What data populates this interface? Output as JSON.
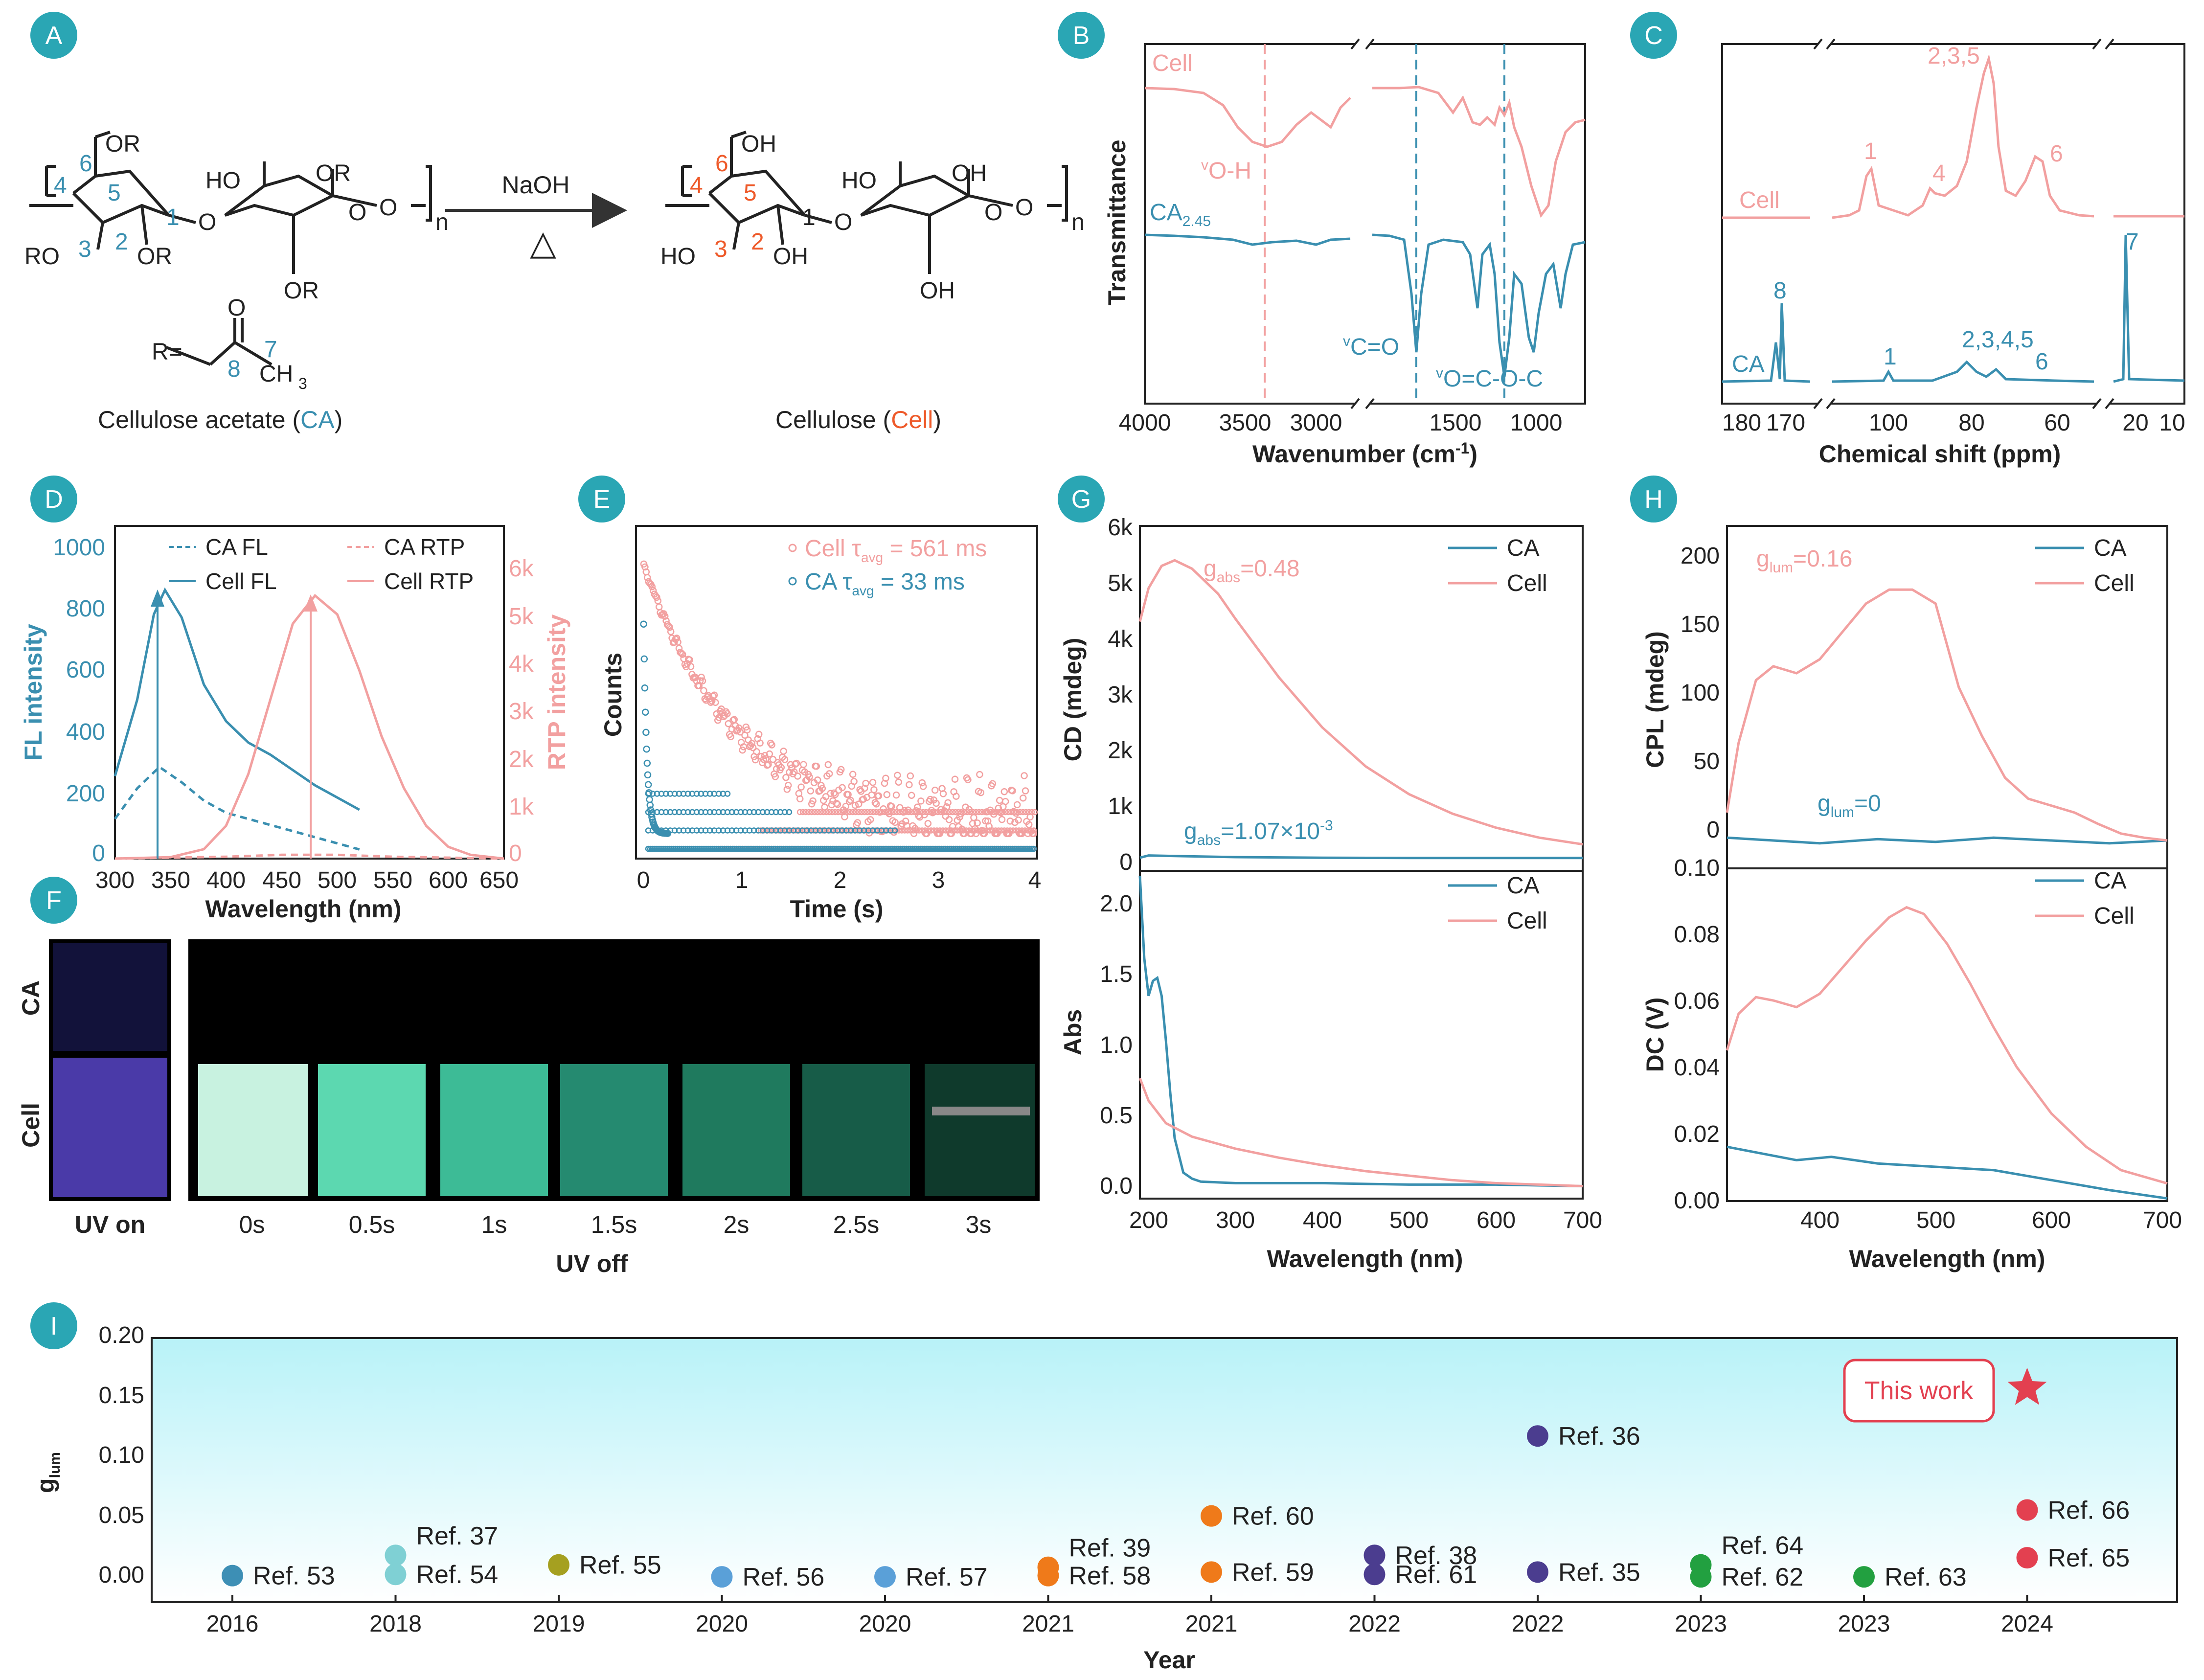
{
  "colors": {
    "teal": "#3a8fb0",
    "pink": "#f2a0a0",
    "orange": "#ee5a2a",
    "red": "#e34050",
    "black": "#222222",
    "badge": "#2aa6b4"
  },
  "panels": {
    "A": {
      "badge": "A",
      "cell_label_prefix": "Cellulose acetate (",
      "ca_abbrev": "CA",
      "cell_label_suffix": ")",
      "cell2_label_prefix": "Cellulose  (",
      "cell_abbrev": "Cell",
      "cell2_label_suffix": ")",
      "reagent": "NaOH",
      "heat": "△",
      "r_label": "R=",
      "atoms": {
        "OR": "OR",
        "RO": "RO",
        "HO": "HO",
        "OH": "OH",
        "O": "O",
        "n": "n",
        "CH3": "CH",
        "sub3": "3"
      },
      "ring_numbers_left": [
        "6",
        "4",
        "5",
        "1",
        "3",
        "2",
        "7",
        "8"
      ],
      "ring_numbers_right": [
        "6",
        "4",
        "5",
        "1",
        "3",
        "2"
      ]
    },
    "B": {
      "badge": "B",
      "series_top": "Cell",
      "series_bottom": "CA",
      "series_bottom_sub": "2.45",
      "ylabel": "Transmittance",
      "xlabel": "Wavenumber (cm",
      "xlabel_sup": "-1",
      "xlabel_end": ")",
      "ann_oh_v": "v",
      "ann_oh": "O-H",
      "ann_co_v": "v",
      "ann_co": "C=O",
      "ann_oco_v": "v",
      "ann_oco": "O=C-O-C",
      "xticks_left": [
        "4000",
        "3500",
        "3000"
      ],
      "xticks_right": [
        "1500",
        "1000"
      ]
    },
    "C": {
      "badge": "C",
      "xlabel": "Chemical shift (ppm)",
      "series_top": "Cell",
      "series_bottom": "CA",
      "peaks_top": [
        "1",
        "4",
        "2,3,5",
        "6"
      ],
      "peaks_bottom": [
        "8",
        "1",
        "2,3,4,5",
        "6",
        "7"
      ],
      "xticks": [
        "180",
        "170",
        "100",
        "80",
        "60",
        "20",
        "10"
      ]
    },
    "D": {
      "badge": "D",
      "ylabel_left": "FL intensity",
      "ylabel_right": "RTP intensity",
      "xlabel": "Wavelength (nm)",
      "legend": [
        "CA FL",
        "Cell FL",
        "CA RTP",
        "Cell RTP"
      ],
      "yticks_left": [
        "0",
        "200",
        "400",
        "600",
        "800",
        "1000"
      ],
      "yticks_right": [
        "0",
        "1k",
        "2k",
        "3k",
        "4k",
        "5k",
        "6k"
      ],
      "xticks": [
        "300",
        "350",
        "400",
        "450",
        "500",
        "550",
        "600",
        "650"
      ]
    },
    "E": {
      "badge": "E",
      "ylabel": "Counts",
      "xlabel": "Time (s)",
      "legend_cell": "Cell τ",
      "legend_cell_sub": "avg",
      "legend_cell_val": " = 561 ms",
      "legend_ca": "CA   τ",
      "legend_ca_sub": "avg",
      "legend_ca_val": " = 33 ms",
      "xticks": [
        "0",
        "1",
        "2",
        "3",
        "4"
      ]
    },
    "F": {
      "badge": "F",
      "row_labels": [
        "CA",
        "Cell"
      ],
      "col_labels": [
        "UV on",
        "0s",
        "0.5s",
        "1s",
        "1.5s",
        "2s",
        "2.5s",
        "3s"
      ],
      "group_label": "UV off"
    },
    "G": {
      "badge": "G",
      "top_ylabel": "CD (mdeg)",
      "bottom_ylabel": "Abs",
      "xlabel": "Wavelength (nm)",
      "legend": [
        "CA",
        "Cell"
      ],
      "ann_cell": "g",
      "ann_cell_sub": "abs",
      "ann_cell_val": "=0.48",
      "ann_ca": "g",
      "ann_ca_sub": "abs",
      "ann_ca_val": "=1.07×10",
      "ann_ca_sup": "-3",
      "top_yticks": [
        "0",
        "1k",
        "2k",
        "3k",
        "4k",
        "5k",
        "6k"
      ],
      "bottom_yticks": [
        "0.0",
        "0.5",
        "1.0",
        "1.5",
        "2.0"
      ],
      "xticks": [
        "200",
        "300",
        "400",
        "500",
        "600",
        "700"
      ]
    },
    "H": {
      "badge": "H",
      "top_ylabel": "CPL (mdeg)",
      "bottom_ylabel": "DC (V)",
      "xlabel": "Wavelength (nm)",
      "legend": [
        "CA",
        "Cell"
      ],
      "ann_cell": "g",
      "ann_cell_sub": "lum",
      "ann_cell_val": "=0.16",
      "ann_ca": "g",
      "ann_ca_sub": "lum",
      "ann_ca_val": "=0",
      "top_yticks": [
        "0",
        "50",
        "100",
        "150",
        "200"
      ],
      "bottom_yticks": [
        "0.00",
        "0.02",
        "0.04",
        "0.06",
        "0.08",
        "0.10"
      ],
      "xticks": [
        "400",
        "500",
        "600",
        "700"
      ]
    },
    "I": {
      "badge": "I",
      "ylabel": "g",
      "ylabel_sub": "lum",
      "xlabel": "Year",
      "this_work": "This work",
      "yticks": [
        "0.00",
        "0.05",
        "0.10",
        "0.15",
        "0.20"
      ],
      "xticks": [
        "2016",
        "2018",
        "2019",
        "2020",
        "2020",
        "2021",
        "2021",
        "2022",
        "2022",
        "2023",
        "2023",
        "2024"
      ]
    }
  },
  "chart_data": [
    {
      "id": "D",
      "type": "line",
      "xlabel": "Wavelength (nm)",
      "ylabel": "FL intensity",
      "y2label": "RTP intensity",
      "xlim": [
        300,
        650
      ],
      "ylim": [
        0,
        1000
      ],
      "y2lim": [
        0,
        6500
      ],
      "series": [
        {
          "name": "CA FL",
          "axis": "left",
          "style": "dashed",
          "color": "#3a8fb0",
          "x": [
            300,
            320,
            340,
            360,
            380,
            400,
            420,
            440,
            460,
            480,
            500,
            520
          ],
          "y": [
            130,
            230,
            300,
            250,
            190,
            150,
            130,
            110,
            90,
            70,
            50,
            30
          ]
        },
        {
          "name": "Cell FL",
          "axis": "left",
          "style": "solid",
          "color": "#3a8fb0",
          "x": [
            300,
            320,
            335,
            345,
            360,
            380,
            400,
            420,
            440,
            460,
            480,
            500,
            520
          ],
          "y": [
            270,
            520,
            800,
            880,
            790,
            570,
            450,
            380,
            340,
            290,
            240,
            200,
            160
          ]
        },
        {
          "name": "CA RTP",
          "axis": "right",
          "style": "dashed",
          "color": "#f2a0a0",
          "x": [
            300,
            350,
            400,
            450,
            500,
            550,
            600,
            650
          ],
          "y": [
            0,
            20,
            40,
            80,
            80,
            40,
            20,
            0
          ]
        },
        {
          "name": "Cell RTP",
          "axis": "right",
          "style": "solid",
          "color": "#f2a0a0",
          "x": [
            300,
            350,
            380,
            400,
            420,
            440,
            460,
            480,
            500,
            520,
            540,
            560,
            580,
            600,
            620,
            650
          ],
          "y": [
            0,
            30,
            200,
            700,
            1800,
            3400,
            5000,
            5600,
            5200,
            4000,
            2600,
            1500,
            700,
            250,
            80,
            0
          ]
        }
      ]
    },
    {
      "id": "E",
      "type": "scatter",
      "xlabel": "Time (s)",
      "ylabel": "Counts",
      "xlim": [
        0,
        4
      ],
      "series": [
        {
          "name": "Cell",
          "color": "#f2a0a0",
          "decay_tau_ms": 561
        },
        {
          "name": "CA",
          "color": "#3a8fb0",
          "decay_tau_ms": 33
        }
      ]
    },
    {
      "id": "G-top",
      "type": "line",
      "xlabel": "",
      "ylabel": "CD (mdeg)",
      "xlim": [
        190,
        700
      ],
      "ylim": [
        0,
        6000
      ],
      "series": [
        {
          "name": "CA",
          "color": "#3a8fb0",
          "x": [
            190,
            200,
            230,
            300,
            400,
            500,
            600,
            700
          ],
          "y": [
            60,
            100,
            90,
            70,
            60,
            55,
            55,
            55
          ]
        },
        {
          "name": "Cell",
          "color": "#f2a0a0",
          "x": [
            190,
            200,
            215,
            230,
            250,
            280,
            300,
            350,
            400,
            450,
            500,
            550,
            600,
            650,
            700
          ],
          "y": [
            4300,
            4900,
            5300,
            5400,
            5250,
            4800,
            4350,
            3300,
            2400,
            1700,
            1200,
            850,
            600,
            420,
            300
          ]
        }
      ]
    },
    {
      "id": "G-bottom",
      "type": "line",
      "xlabel": "Wavelength (nm)",
      "ylabel": "Abs",
      "xlim": [
        190,
        700
      ],
      "ylim": [
        -0.05,
        2.2
      ],
      "series": [
        {
          "name": "CA",
          "color": "#3a8fb0",
          "x": [
            190,
            195,
            200,
            205,
            210,
            215,
            220,
            225,
            230,
            240,
            250,
            260,
            300,
            400,
            500,
            600,
            700
          ],
          "y": [
            2.1,
            1.55,
            1.3,
            1.4,
            1.42,
            1.3,
            1.0,
            0.65,
            0.35,
            0.12,
            0.08,
            0.06,
            0.05,
            0.05,
            0.04,
            0.04,
            0.03
          ]
        },
        {
          "name": "Cell",
          "color": "#f2a0a0",
          "x": [
            190,
            200,
            220,
            250,
            300,
            350,
            400,
            450,
            500,
            550,
            600,
            650,
            700
          ],
          "y": [
            0.75,
            0.6,
            0.45,
            0.36,
            0.28,
            0.22,
            0.17,
            0.13,
            0.1,
            0.07,
            0.05,
            0.04,
            0.03
          ]
        }
      ]
    },
    {
      "id": "H-top",
      "type": "line",
      "xlabel": "",
      "ylabel": "CPL (mdeg)",
      "xlim": [
        320,
        700
      ],
      "ylim": [
        -20,
        225
      ],
      "series": [
        {
          "name": "CA",
          "color": "#3a8fb0",
          "x": [
            320,
            360,
            400,
            450,
            500,
            550,
            600,
            650,
            700
          ],
          "y": [
            2,
            0,
            -2,
            1,
            -1,
            2,
            0,
            -2,
            0
          ]
        },
        {
          "name": "Cell",
          "color": "#f2a0a0",
          "x": [
            320,
            330,
            345,
            360,
            380,
            400,
            420,
            440,
            460,
            480,
            500,
            510,
            520,
            540,
            560,
            580,
            600,
            620,
            640,
            660,
            680,
            700
          ],
          "y": [
            20,
            70,
            115,
            125,
            120,
            130,
            150,
            170,
            180,
            180,
            170,
            140,
            110,
            75,
            45,
            30,
            25,
            20,
            12,
            5,
            2,
            0
          ]
        }
      ]
    },
    {
      "id": "H-bottom",
      "type": "line",
      "xlabel": "Wavelength (nm)",
      "ylabel": "DC (V)",
      "xlim": [
        320,
        700
      ],
      "ylim": [
        0,
        0.1
      ],
      "series": [
        {
          "name": "CA",
          "color": "#3a8fb0",
          "x": [
            320,
            350,
            380,
            410,
            450,
            500,
            550,
            600,
            650,
            700
          ],
          "y": [
            0.016,
            0.014,
            0.012,
            0.013,
            0.011,
            0.01,
            0.009,
            0.006,
            0.003,
            0.0005
          ]
        },
        {
          "name": "Cell",
          "color": "#f2a0a0",
          "x": [
            320,
            330,
            345,
            360,
            380,
            400,
            420,
            440,
            460,
            475,
            490,
            510,
            530,
            550,
            570,
            600,
            630,
            660,
            700
          ],
          "y": [
            0.045,
            0.056,
            0.061,
            0.06,
            0.058,
            0.062,
            0.07,
            0.078,
            0.085,
            0.088,
            0.086,
            0.077,
            0.065,
            0.052,
            0.04,
            0.026,
            0.016,
            0.009,
            0.005
          ]
        }
      ]
    },
    {
      "id": "I",
      "type": "scatter",
      "xlabel": "Year",
      "ylabel": "glum",
      "ylim": [
        -0.02,
        0.2
      ],
      "points": [
        {
          "ref": "Ref. 53",
          "slot": 0,
          "y": 0.003,
          "color": "#3d8fb5",
          "label_side": "right"
        },
        {
          "ref": "Ref. 37",
          "slot": 1,
          "y": 0.02,
          "color": "#7fd0d4",
          "label_side": "above-right"
        },
        {
          "ref": "Ref. 54",
          "slot": 1,
          "y": 0.004,
          "color": "#7fd0d4",
          "label_side": "right"
        },
        {
          "ref": "Ref. 55",
          "slot": 2,
          "y": 0.012,
          "color": "#a5a020",
          "label_side": "right"
        },
        {
          "ref": "Ref. 56",
          "slot": 3,
          "y": 0.002,
          "color": "#5aa0d8",
          "label_side": "right"
        },
        {
          "ref": "Ref. 57",
          "slot": 4,
          "y": 0.002,
          "color": "#5aa0d8",
          "label_side": "right"
        },
        {
          "ref": "Ref. 39",
          "slot": 5,
          "y": 0.01,
          "color": "#ef7a1a",
          "label_side": "above-right"
        },
        {
          "ref": "Ref. 58",
          "slot": 5,
          "y": 0.003,
          "color": "#ef7a1a",
          "label_side": "right"
        },
        {
          "ref": "Ref. 60",
          "slot": 6,
          "y": 0.053,
          "color": "#ef7a1a",
          "label_side": "right"
        },
        {
          "ref": "Ref. 59",
          "slot": 6,
          "y": 0.006,
          "color": "#ef7a1a",
          "label_side": "right"
        },
        {
          "ref": "Ref. 38",
          "slot": 7,
          "y": 0.02,
          "color": "#4b3d8f",
          "label_side": "right"
        },
        {
          "ref": "Ref. 61",
          "slot": 7,
          "y": 0.004,
          "color": "#4b3d8f",
          "label_side": "right"
        },
        {
          "ref": "Ref. 36",
          "slot": 8,
          "y": 0.12,
          "color": "#4b3d8f",
          "label_side": "right"
        },
        {
          "ref": "Ref. 35",
          "slot": 8,
          "y": 0.006,
          "color": "#4b3d8f",
          "label_side": "right"
        },
        {
          "ref": "Ref. 64",
          "slot": 9,
          "y": 0.012,
          "color": "#22a040",
          "label_side": "above-right"
        },
        {
          "ref": "Ref. 62",
          "slot": 9,
          "y": 0.002,
          "color": "#22a040",
          "label_side": "right"
        },
        {
          "ref": "Ref. 63",
          "slot": 10,
          "y": 0.002,
          "color": "#22a040",
          "label_side": "right"
        },
        {
          "ref": "Ref. 66",
          "slot": 11,
          "y": 0.058,
          "color": "#e34050",
          "label_side": "right"
        },
        {
          "ref": "Ref. 65",
          "slot": 11,
          "y": 0.018,
          "color": "#e34050",
          "label_side": "right"
        },
        {
          "ref": "This work",
          "slot": 11,
          "y": 0.16,
          "color": "#e34050",
          "marker": "star"
        }
      ]
    }
  ]
}
